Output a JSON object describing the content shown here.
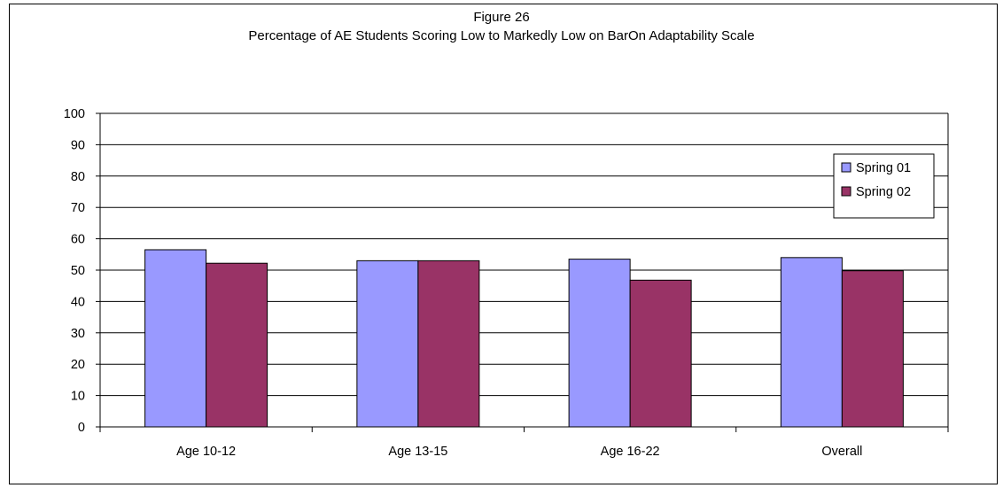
{
  "colors": {
    "series_1": "#9999ff",
    "series_2": "#993366",
    "grid": "#000000",
    "frame": "#000000"
  },
  "chart_data": {
    "type": "bar",
    "title": "Figure 26",
    "subtitle": "Percentage of AE Students Scoring Low to Markedly Low on BarOn Adaptability Scale",
    "xlabel": "",
    "ylabel": "",
    "categories": [
      "Age 10-12",
      "Age 13-15",
      "Age 16-22",
      "Overall"
    ],
    "series": [
      {
        "name": "Spring 01",
        "values": [
          56.5,
          53,
          53.5,
          54
        ]
      },
      {
        "name": "Spring 02",
        "values": [
          52.2,
          53,
          46.8,
          49.8
        ]
      }
    ],
    "ylim": [
      0,
      100
    ],
    "yticks": [
      "0",
      "10",
      "20",
      "30",
      "40",
      "50",
      "60",
      "70",
      "80",
      "90",
      "100"
    ],
    "grid": true,
    "legend": "right"
  }
}
